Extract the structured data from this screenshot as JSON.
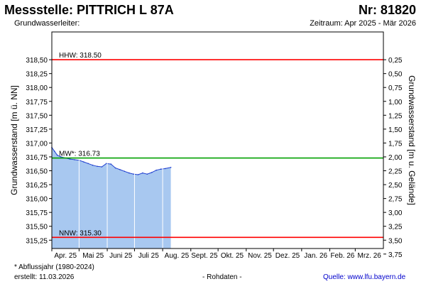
{
  "header": {
    "title": "Messstelle: PITTRICH L 87A",
    "number": "Nr: 81820",
    "aquifer": "Grundwasserleiter:",
    "period": "Zeitraum: Apr 2025 - Mär 2026"
  },
  "footer": {
    "footnote": "* Abflussjahr (1980-2024)",
    "created": "erstellt:   11.03.2026",
    "rawdata": "- Rohdaten -",
    "source": "Quelle:  www.lfu.bayern.de"
  },
  "colors": {
    "extreme_line": "#ff0000",
    "mean_line": "#00a000",
    "series_fill": "#a8c8f0",
    "series_line": "#2040d0",
    "month_gridline": "#ffffff"
  },
  "chart_data": {
    "type": "area",
    "ylabel": "Grundwasserstand [m ü. NN]",
    "ylabel_right": "Grundwasserstand [m u. Gelände]",
    "ylim": [
      315.1,
      319.0
    ],
    "yticks": [
      "318,50",
      "318,25",
      "318,00",
      "317,75",
      "317,50",
      "317,25",
      "317,00",
      "316,75",
      "316,50",
      "316,25",
      "316,00",
      "315,75",
      "315,50",
      "315,25"
    ],
    "ytick_values": [
      318.5,
      318.25,
      318.0,
      317.75,
      317.5,
      317.25,
      317.0,
      316.75,
      316.5,
      316.25,
      316.0,
      315.75,
      315.5,
      315.25
    ],
    "yticks_right": [
      "0,25",
      "0,50",
      "0,75",
      "1,00",
      "1,25",
      "1,50",
      "1,75",
      "2,00",
      "2,25",
      "2,50",
      "2,75",
      "3,00",
      "3,25",
      "3,50",
      "3,75"
    ],
    "yticks_right_depth": [
      0.25,
      0.5,
      0.75,
      1.0,
      1.25,
      1.5,
      1.75,
      2.0,
      2.25,
      2.5,
      2.75,
      3.0,
      3.25,
      3.5,
      3.75
    ],
    "ground_level": 318.75,
    "x_range_days": [
      0,
      365
    ],
    "months": [
      "Apr. 25",
      "Mai 25",
      "Juni 25",
      "Juli 25",
      "Aug. 25",
      "Sept. 25",
      "Okt. 25",
      "Nov. 25",
      "Dez. 25",
      "Jan. 26",
      "Feb. 26",
      "Mrz. 26"
    ],
    "month_start_days": [
      0,
      30,
      61,
      91,
      122,
      153,
      183,
      214,
      244,
      275,
      306,
      334
    ],
    "reference_lines": [
      {
        "label": "HHW: 318.50",
        "value": 318.5,
        "kind": "extreme"
      },
      {
        "label": "MW*: 316.73",
        "value": 316.73,
        "kind": "mean"
      },
      {
        "label": "NNW: 315.30",
        "value": 315.3,
        "kind": "extreme"
      }
    ],
    "series": {
      "x": [
        0,
        3,
        6,
        10,
        15,
        20,
        25,
        30,
        35,
        40,
        45,
        50,
        55,
        60,
        65,
        70,
        75,
        80,
        85,
        90,
        95,
        100,
        105,
        110,
        115,
        120,
        125,
        131
      ],
      "y": [
        316.92,
        316.85,
        316.78,
        316.75,
        316.73,
        316.71,
        316.7,
        316.69,
        316.66,
        316.63,
        316.6,
        316.58,
        316.57,
        316.63,
        316.62,
        316.55,
        316.52,
        316.49,
        316.46,
        316.44,
        316.43,
        316.46,
        316.44,
        316.47,
        316.51,
        316.53,
        316.54,
        316.56
      ]
    }
  }
}
